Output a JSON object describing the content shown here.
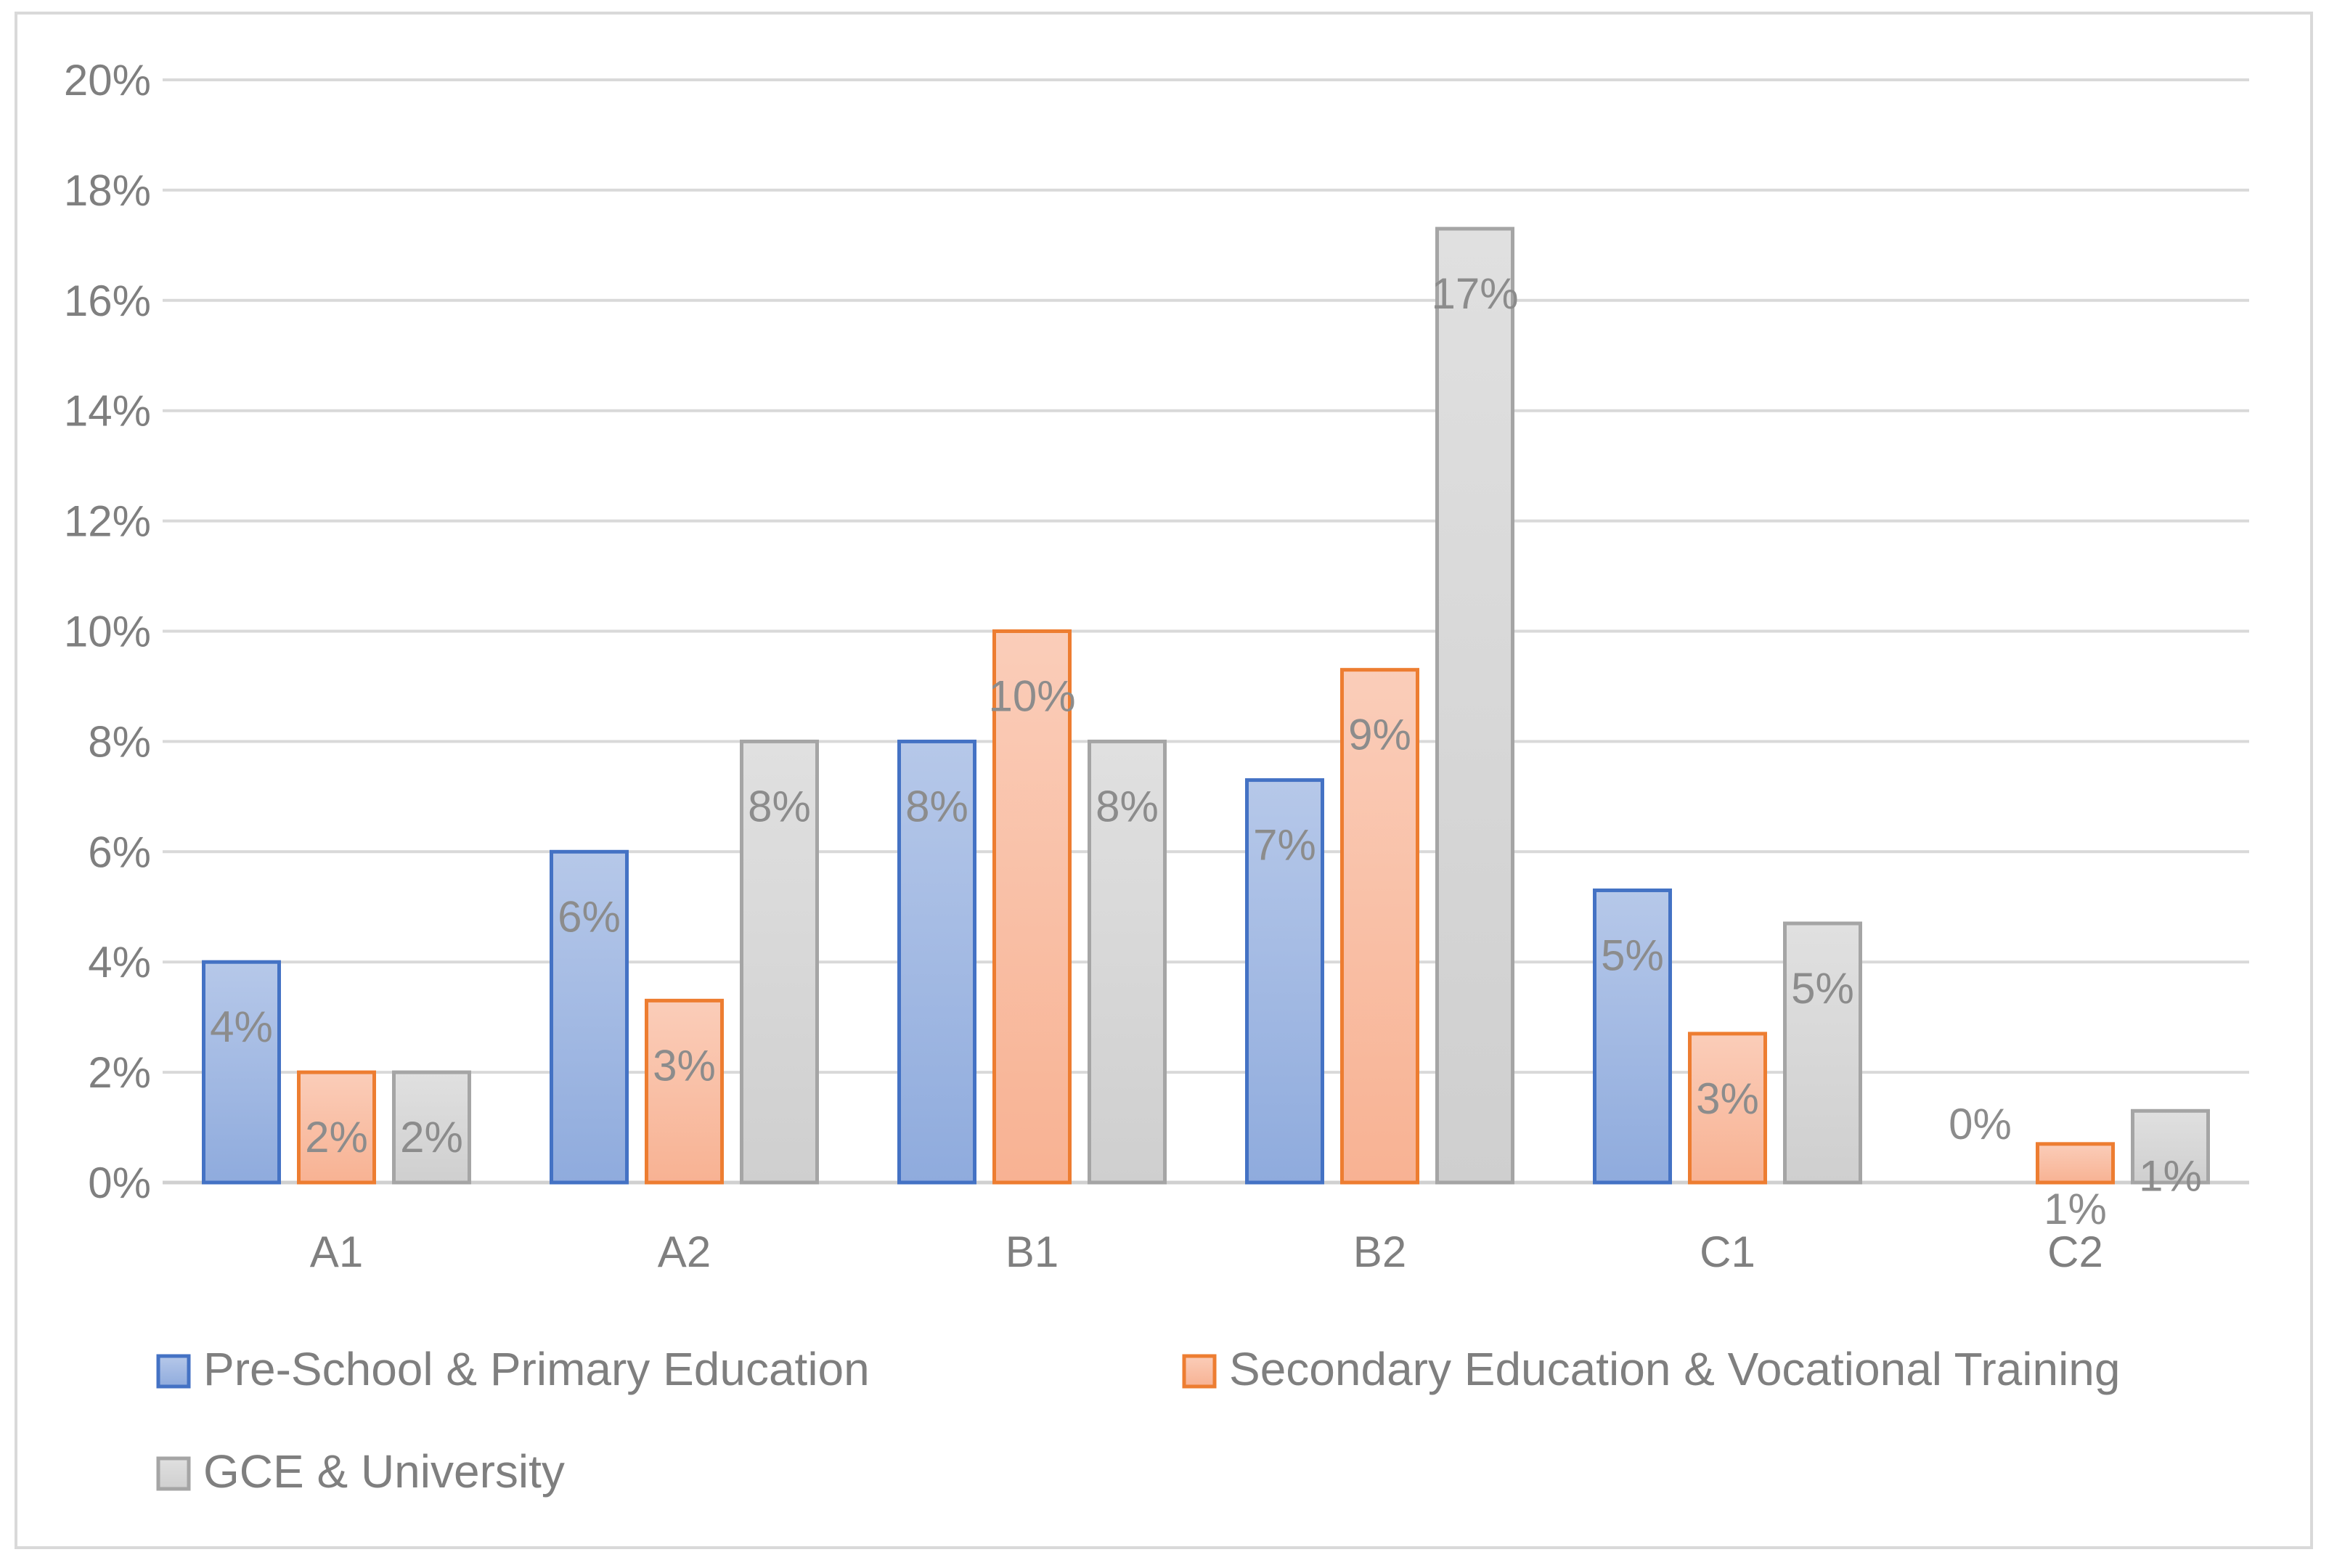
{
  "chart_data": {
    "type": "bar",
    "title": "",
    "xlabel": "",
    "ylabel": "",
    "categories": [
      "A1",
      "A2",
      "B1",
      "B2",
      "C1",
      "C2"
    ],
    "ylim": [
      0,
      20
    ],
    "yticks": [
      "0%",
      "2%",
      "4%",
      "6%",
      "8%",
      "10%",
      "12%",
      "14%",
      "16%",
      "18%",
      "20%"
    ],
    "grid": true,
    "legend_position": "bottom",
    "series": [
      {
        "name": "Pre-School & Primary Education",
        "color": "#4472c4",
        "fill": "#8fabdd",
        "values": [
          4,
          6,
          8,
          7.3,
          5.3,
          0
        ],
        "labels": [
          "4%",
          "6%",
          "8%",
          "7%",
          "5%",
          "0%"
        ]
      },
      {
        "name": "Secondary Education & Vocational Training",
        "color": "#ed7d31",
        "fill": "#f8b293",
        "values": [
          2,
          3.3,
          10,
          9.3,
          2.7,
          0.7
        ],
        "labels": [
          "2%",
          "3%",
          "10%",
          "9%",
          "3%",
          "1%"
        ]
      },
      {
        "name": "GCE & University",
        "color": "#a5a5a5",
        "fill": "#cfcfcf",
        "values": [
          2,
          8,
          8,
          17.3,
          4.7,
          1.3
        ],
        "labels": [
          "2%",
          "8%",
          "8%",
          "17%",
          "5%",
          "1%"
        ]
      }
    ]
  }
}
